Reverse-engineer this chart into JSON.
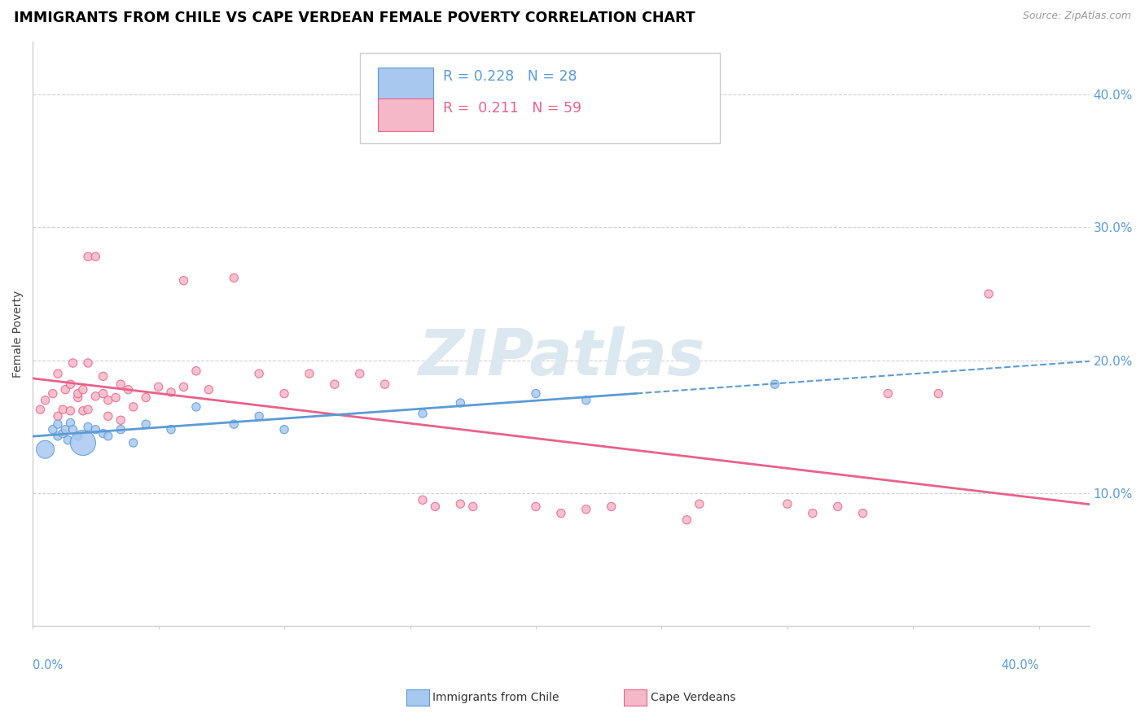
{
  "title": "IMMIGRANTS FROM CHILE VS CAPE VERDEAN FEMALE POVERTY CORRELATION CHART",
  "source": "Source: ZipAtlas.com",
  "ylabel": "Female Poverty",
  "xlim": [
    0.0,
    0.42
  ],
  "ylim": [
    0.0,
    0.44
  ],
  "yticks": [
    0.1,
    0.2,
    0.3,
    0.4
  ],
  "ytick_labels": [
    "10.0%",
    "20.0%",
    "30.0%",
    "40.0%"
  ],
  "chile_color": "#A8C8F0",
  "chile_edge_color": "#5B9BD5",
  "cape_color": "#F5B8C8",
  "cape_edge_color": "#E8628A",
  "chile_line_color": "#5B9BD5",
  "cape_line_color": "#E8628A",
  "grid_color": "#d0d0d0",
  "watermark": "ZIPatlas",
  "watermark_color": "#dce8f0",
  "legend_text_color": "#5B9BD5",
  "chile_x": [
    0.005,
    0.008,
    0.01,
    0.01,
    0.012,
    0.013,
    0.014,
    0.015,
    0.016,
    0.018,
    0.02,
    0.022,
    0.025,
    0.028,
    0.03,
    0.035,
    0.04,
    0.045,
    0.055,
    0.065,
    0.08,
    0.09,
    0.1,
    0.155,
    0.17,
    0.2,
    0.22,
    0.295
  ],
  "chile_y": [
    0.133,
    0.148,
    0.152,
    0.143,
    0.145,
    0.148,
    0.14,
    0.153,
    0.148,
    0.143,
    0.138,
    0.15,
    0.148,
    0.145,
    0.143,
    0.148,
    0.138,
    0.152,
    0.148,
    0.165,
    0.152,
    0.158,
    0.148,
    0.16,
    0.168,
    0.175,
    0.17,
    0.182
  ],
  "chile_size": [
    250,
    55,
    55,
    55,
    55,
    55,
    55,
    55,
    55,
    55,
    500,
    55,
    55,
    55,
    55,
    55,
    55,
    55,
    55,
    55,
    55,
    55,
    55,
    55,
    55,
    55,
    55,
    55
  ],
  "cape_x": [
    0.003,
    0.005,
    0.008,
    0.01,
    0.01,
    0.012,
    0.013,
    0.015,
    0.015,
    0.016,
    0.018,
    0.018,
    0.02,
    0.02,
    0.022,
    0.022,
    0.022,
    0.025,
    0.025,
    0.028,
    0.028,
    0.03,
    0.03,
    0.033,
    0.035,
    0.035,
    0.038,
    0.04,
    0.045,
    0.05,
    0.055,
    0.06,
    0.06,
    0.065,
    0.07,
    0.08,
    0.09,
    0.1,
    0.11,
    0.12,
    0.13,
    0.14,
    0.155,
    0.16,
    0.17,
    0.175,
    0.2,
    0.21,
    0.22,
    0.23,
    0.26,
    0.265,
    0.3,
    0.31,
    0.32,
    0.33,
    0.34,
    0.36,
    0.38
  ],
  "cape_y": [
    0.163,
    0.17,
    0.175,
    0.158,
    0.19,
    0.163,
    0.178,
    0.162,
    0.182,
    0.198,
    0.172,
    0.175,
    0.162,
    0.178,
    0.163,
    0.198,
    0.278,
    0.173,
    0.278,
    0.175,
    0.188,
    0.158,
    0.17,
    0.172,
    0.155,
    0.182,
    0.178,
    0.165,
    0.172,
    0.18,
    0.176,
    0.18,
    0.26,
    0.192,
    0.178,
    0.262,
    0.19,
    0.175,
    0.19,
    0.182,
    0.19,
    0.182,
    0.095,
    0.09,
    0.092,
    0.09,
    0.09,
    0.085,
    0.088,
    0.09,
    0.08,
    0.092,
    0.092,
    0.085,
    0.09,
    0.085,
    0.175,
    0.175,
    0.25
  ],
  "cape_size": [
    55,
    55,
    55,
    55,
    55,
    55,
    55,
    55,
    55,
    55,
    55,
    55,
    55,
    55,
    55,
    55,
    55,
    55,
    55,
    55,
    55,
    55,
    55,
    55,
    55,
    55,
    55,
    55,
    55,
    55,
    55,
    55,
    55,
    55,
    55,
    55,
    55,
    55,
    55,
    55,
    55,
    55,
    55,
    55,
    55,
    55,
    55,
    55,
    55,
    55,
    55,
    55,
    55,
    55,
    55,
    55,
    55,
    55,
    55
  ]
}
